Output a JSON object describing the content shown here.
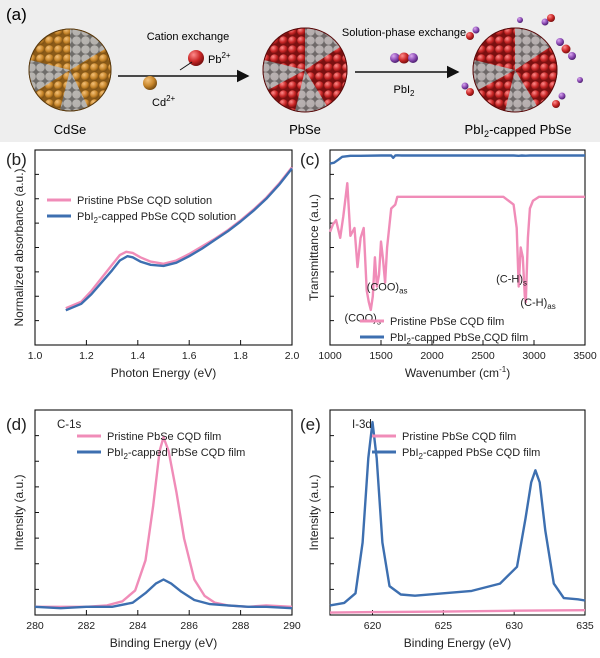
{
  "colors": {
    "pristine": "#f08cb8",
    "capped": "#3d6fb0",
    "lead": "#c92626",
    "cadmium": "#c8862a",
    "gray": "#9a9a9a",
    "iodine": "#8a4ab2",
    "banner": "#eeeeee"
  },
  "scheme": {
    "label": "(a)",
    "step1": "Cation exchange",
    "pb_ion": "Pb",
    "pb_charge": "2+",
    "cd_ion": "Cd",
    "cd_charge": "2+",
    "step2": "Solution-phase exchange",
    "reagent": "PbI",
    "reagent_sub": "2",
    "name1": "CdSe",
    "name2": "PbSe",
    "name3_a": "PbI",
    "name3_sub": "2",
    "name3_b": "-capped PbSe"
  },
  "chart_data": [
    {
      "panel": "(b)",
      "type": "line",
      "xlabel": "Photon Energy (eV)",
      "ylabel": "Normalized absorbance (a.u.)",
      "xlim": [
        1.0,
        2.0
      ],
      "xticks": [
        1.0,
        1.2,
        1.4,
        1.6,
        1.8,
        2.0
      ],
      "legend": [
        {
          "text": "Pristine PbSe CQD solution"
        },
        {
          "text_a": "PbI",
          "sub": "2",
          "text_b": "-capped PbSe CQD solution"
        }
      ],
      "series": [
        {
          "key": "pristine",
          "x": [
            1.12,
            1.18,
            1.22,
            1.26,
            1.3,
            1.33,
            1.355,
            1.38,
            1.41,
            1.45,
            1.5,
            1.55,
            1.6,
            1.65,
            1.7,
            1.75,
            1.8,
            1.85,
            1.9,
            1.95,
            2.0
          ],
          "y": [
            0.17,
            0.2,
            0.25,
            0.31,
            0.37,
            0.415,
            0.43,
            0.425,
            0.405,
            0.385,
            0.375,
            0.39,
            0.42,
            0.455,
            0.49,
            0.53,
            0.575,
            0.625,
            0.68,
            0.745,
            0.82
          ]
        },
        {
          "key": "capped",
          "x": [
            1.12,
            1.18,
            1.22,
            1.26,
            1.3,
            1.33,
            1.36,
            1.38,
            1.41,
            1.45,
            1.5,
            1.55,
            1.6,
            1.65,
            1.7,
            1.75,
            1.8,
            1.85,
            1.9,
            1.95,
            2.0
          ],
          "y": [
            0.16,
            0.19,
            0.235,
            0.29,
            0.345,
            0.39,
            0.41,
            0.405,
            0.385,
            0.37,
            0.365,
            0.38,
            0.41,
            0.445,
            0.485,
            0.525,
            0.57,
            0.62,
            0.675,
            0.74,
            0.815
          ]
        }
      ]
    },
    {
      "panel": "(c)",
      "type": "line",
      "xlabel_a": "Wavenumber (cm",
      "xlabel_sup": "-1",
      "xlabel_b": ")",
      "ylabel": "Transmittance (a.u.)",
      "xlim": [
        1000,
        3500
      ],
      "xticks": [
        1000,
        1500,
        2000,
        2500,
        3000,
        3500
      ],
      "annotations": [
        {
          "a": "(COO)",
          "sub": "s",
          "x": 1320,
          "y": 0.12
        },
        {
          "a": "(COO)",
          "sub": "as",
          "x": 1560,
          "y": 0.28
        },
        {
          "a": "(C-H)",
          "sub": "s",
          "x": 2780,
          "y": 0.32
        },
        {
          "a": "(C-H)",
          "sub": "as",
          "x": 3040,
          "y": 0.2
        }
      ],
      "legend": [
        {
          "text": "Pristine PbSe CQD film"
        },
        {
          "text_a": "PbI",
          "sub": "2",
          "text_b": "-capped PbSe CQD film"
        }
      ],
      "series": [
        {
          "key": "capped",
          "x": [
            1000,
            1040,
            1080,
            1120,
            1200,
            1300,
            1500,
            1600,
            1620,
            1640,
            1660,
            1700,
            2000,
            2500,
            2800,
            2850,
            2880,
            2920,
            2960,
            3000,
            3500
          ],
          "y": [
            0.93,
            0.935,
            0.95,
            0.965,
            0.97,
            0.97,
            0.972,
            0.972,
            0.96,
            0.972,
            0.973,
            0.972,
            0.972,
            0.972,
            0.972,
            0.97,
            0.972,
            0.971,
            0.972,
            0.972,
            0.972
          ]
        },
        {
          "key": "pristine",
          "x": [
            1000,
            1030,
            1060,
            1100,
            1130,
            1170,
            1200,
            1240,
            1270,
            1300,
            1330,
            1360,
            1380,
            1400,
            1420,
            1440,
            1460,
            1480,
            1500,
            1520,
            1540,
            1560,
            1600,
            1640,
            1660,
            1700,
            2000,
            2400,
            2700,
            2800,
            2830,
            2850,
            2870,
            2890,
            2910,
            2920,
            2940,
            2960,
            2990,
            3050,
            3500
          ],
          "y": [
            0.58,
            0.62,
            0.64,
            0.55,
            0.66,
            0.83,
            0.56,
            0.6,
            0.4,
            0.55,
            0.6,
            0.28,
            0.22,
            0.18,
            0.25,
            0.45,
            0.3,
            0.36,
            0.53,
            0.44,
            0.32,
            0.5,
            0.7,
            0.72,
            0.76,
            0.76,
            0.76,
            0.76,
            0.76,
            0.72,
            0.6,
            0.3,
            0.5,
            0.45,
            0.25,
            0.22,
            0.55,
            0.7,
            0.74,
            0.76,
            0.76
          ]
        }
      ]
    },
    {
      "panel": "(d)",
      "type": "line",
      "title": "C-1s",
      "xlabel": "Binding Energy (eV)",
      "ylabel": "Intensity (a.u.)",
      "xlim": [
        280,
        290
      ],
      "xticks": [
        280,
        282,
        284,
        286,
        288,
        290
      ],
      "legend": [
        {
          "text": "Pristine PbSe CQD film"
        },
        {
          "text_a": "PbI",
          "sub": "2",
          "text_b": "-capped PbSe CQD film"
        }
      ],
      "series": [
        {
          "key": "pristine",
          "x": [
            280,
            281,
            282,
            282.8,
            283.4,
            283.9,
            284.3,
            284.6,
            284.85,
            285.0,
            285.2,
            285.5,
            285.8,
            286.2,
            286.6,
            287.0,
            287.5,
            288.3,
            289,
            290
          ],
          "y": [
            0.03,
            0.03,
            0.03,
            0.035,
            0.05,
            0.09,
            0.2,
            0.4,
            0.6,
            0.65,
            0.6,
            0.45,
            0.28,
            0.13,
            0.07,
            0.045,
            0.035,
            0.03,
            0.035,
            0.03
          ]
        },
        {
          "key": "capped",
          "x": [
            280,
            281,
            282,
            283,
            283.8,
            284.3,
            284.7,
            285.0,
            285.3,
            285.7,
            286.2,
            286.8,
            287.5,
            288.3,
            289,
            290
          ],
          "y": [
            0.03,
            0.025,
            0.03,
            0.03,
            0.045,
            0.08,
            0.115,
            0.13,
            0.115,
            0.085,
            0.055,
            0.04,
            0.035,
            0.03,
            0.03,
            0.025
          ]
        }
      ]
    },
    {
      "panel": "(e)",
      "type": "line",
      "title": "I-3d",
      "xlabel": "Binding Energy (eV)",
      "ylabel": "Intensity (a.u.)",
      "xlim": [
        617,
        635
      ],
      "xticks": [
        620,
        625,
        630,
        635
      ],
      "legend": [
        {
          "text": "Pristine PbSe CQD film"
        },
        {
          "text_a": "PbI",
          "sub": "2",
          "text_b": "-capped PbSe CQD film"
        }
      ],
      "series": [
        {
          "key": "pristine",
          "x": [
            617,
            620,
            625,
            630,
            635
          ],
          "y": [
            0.01,
            0.012,
            0.014,
            0.018,
            0.02
          ]
        },
        {
          "key": "capped",
          "x": [
            617,
            618,
            618.8,
            619.3,
            619.7,
            620.0,
            620.3,
            620.7,
            621.2,
            622,
            623,
            625,
            627,
            629,
            630.2,
            630.8,
            631.2,
            631.5,
            631.8,
            632.2,
            632.8,
            633.5,
            634.5,
            635
          ],
          "y": [
            0.04,
            0.05,
            0.09,
            0.3,
            0.65,
            0.8,
            0.65,
            0.3,
            0.12,
            0.085,
            0.08,
            0.09,
            0.1,
            0.13,
            0.2,
            0.4,
            0.55,
            0.6,
            0.55,
            0.35,
            0.13,
            0.07,
            0.065,
            0.06
          ]
        }
      ]
    }
  ]
}
